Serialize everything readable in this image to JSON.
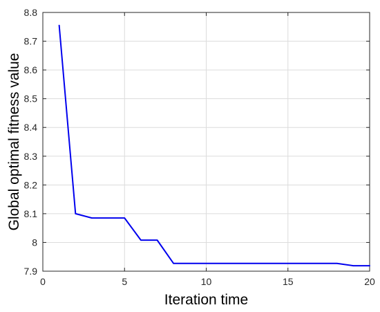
{
  "chart_data": {
    "type": "line",
    "title": "",
    "xlabel": "Iteration time",
    "ylabel": "Global optimal fitness value",
    "xlim": [
      0,
      20
    ],
    "ylim": [
      7.9,
      8.8
    ],
    "xticks": [
      0,
      5,
      10,
      15,
      20
    ],
    "yticks": [
      7.9,
      8.0,
      8.1,
      8.2,
      8.3,
      8.4,
      8.5,
      8.6,
      8.7,
      8.8
    ],
    "x_tick_labels": [
      "0",
      "5",
      "10",
      "15",
      "20"
    ],
    "y_tick_labels": [
      "7.9",
      "8",
      "8.1",
      "8.2",
      "8.3",
      "8.4",
      "8.5",
      "8.6",
      "8.7",
      "8.8"
    ],
    "grid": true,
    "legend": "none",
    "series": [
      {
        "color": "#0000ee",
        "x": [
          1,
          2,
          3,
          4,
          5,
          6,
          7,
          8,
          9,
          10,
          11,
          12,
          13,
          14,
          15,
          16,
          17,
          18,
          19,
          20
        ],
        "y": [
          8.755,
          8.1,
          8.085,
          8.085,
          8.085,
          8.008,
          8.008,
          7.927,
          7.927,
          7.927,
          7.927,
          7.927,
          7.927,
          7.927,
          7.927,
          7.927,
          7.927,
          7.927,
          7.919,
          7.919
        ]
      }
    ]
  }
}
